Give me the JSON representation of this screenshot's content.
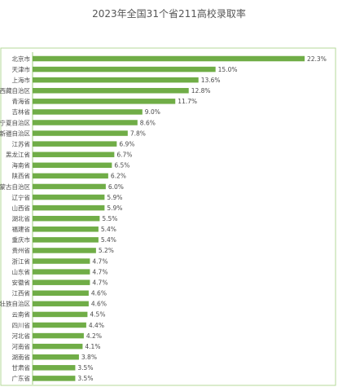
{
  "title": "2023年全国31个省211高校录取率",
  "colors": {
    "bar": "#70ad47",
    "frame": "#b5d99a",
    "text": "#4a4a4a"
  },
  "chart_data": {
    "type": "bar",
    "orientation": "horizontal",
    "title": "2023年全国31个省211高校录取率",
    "categories": [
      "北京市",
      "天津市",
      "上海市",
      "西藏自治区",
      "青海省",
      "吉林省",
      "宁夏自治区",
      "新疆自治区",
      "江苏省",
      "黑龙江省",
      "海南省",
      "陕西省",
      "内蒙古自治区",
      "辽宁省",
      "山西省",
      "湖北省",
      "福建省",
      "重庆市",
      "贵州省",
      "浙江省",
      "山东省",
      "安徽省",
      "江西省",
      "广西壮族自治区",
      "云南省",
      "四川省",
      "河北省",
      "河南省",
      "湖南省",
      "甘肃省",
      "广东省"
    ],
    "values": [
      22.3,
      15.0,
      13.6,
      12.8,
      11.7,
      9.0,
      8.6,
      7.8,
      6.9,
      6.7,
      6.5,
      6.2,
      6.0,
      5.9,
      5.9,
      5.5,
      5.4,
      5.4,
      5.2,
      4.7,
      4.7,
      4.7,
      4.6,
      4.6,
      4.5,
      4.4,
      4.2,
      4.1,
      3.8,
      3.5,
      3.5
    ],
    "value_labels": [
      "22.3%",
      "15.0%",
      "13.6%",
      "12.8%",
      "11.7%",
      "9.0%",
      "8.6%",
      "7.8%",
      "6.9%",
      "6.7%",
      "6.5%",
      "6.2%",
      "6.0%",
      "5.9%",
      "5.9%",
      "5.5%",
      "5.4%",
      "5.4%",
      "5.2%",
      "4.7%",
      "4.7%",
      "4.7%",
      "4.6%",
      "4.6%",
      "4.5%",
      "4.4%",
      "4.2%",
      "4.1%",
      "3.8%",
      "3.5%",
      "3.5%"
    ],
    "xlim": [
      0,
      22.3
    ],
    "grid": false,
    "legend": "none"
  }
}
